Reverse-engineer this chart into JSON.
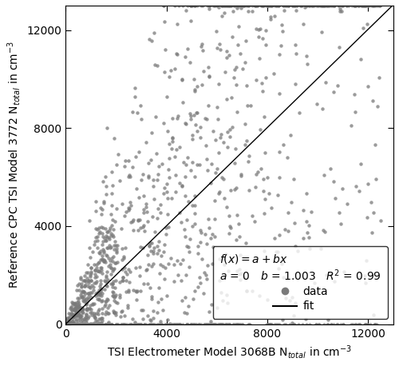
{
  "xlabel": "TSI Electrometer Model 3068B N$_{total}$ in cm$^{-3}$",
  "ylabel": "Reference CPC TSI Model 3772 N$_{total}$ in cm$^{-3}$",
  "xlim": [
    0,
    13000
  ],
  "ylim": [
    0,
    13000
  ],
  "xticks": [
    0,
    4000,
    8000,
    12000
  ],
  "yticks": [
    0,
    4000,
    8000,
    12000
  ],
  "fit_a": 0,
  "fit_b": 1.003,
  "r_squared": 0.99,
  "n_points": 1500,
  "data_color": "#7a7a7a",
  "fit_color": "#000000",
  "marker_size": 4.5,
  "alpha": 0.75,
  "noise_base": 60,
  "noise_scale": 0.012,
  "figsize": [
    5.0,
    4.58
  ],
  "dpi": 100
}
